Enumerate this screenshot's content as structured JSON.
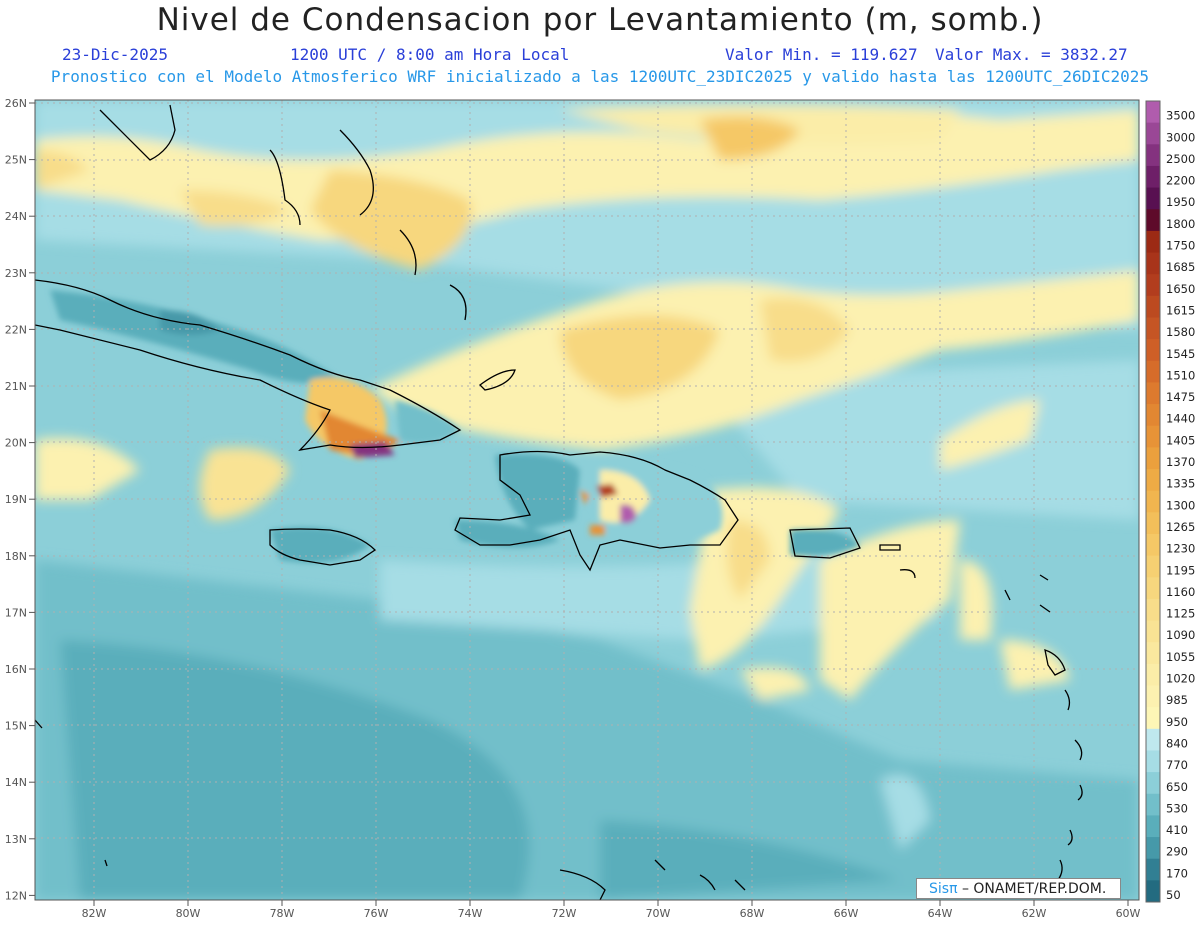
{
  "header": {
    "title": "Nivel de Condensacion por Levantamiento (m, somb.)",
    "date": "23-Dic-2025",
    "time": "1200 UTC / 8:00 am Hora Local",
    "valmin": "Valor Min. = 119.627",
    "valmax": "Valor Max. = 3832.27",
    "forecast": "Pronostico con el Modelo Atmosferico WRF inicializado a las 1200UTC_23DIC2025 y valido hasta las  1200UTC_26DIC2025"
  },
  "axes": {
    "lat_labels": [
      "26N",
      "25N",
      "24N",
      "23N",
      "22N",
      "21N",
      "20N",
      "19N",
      "18N",
      "17N",
      "16N",
      "15N",
      "14N",
      "13N",
      "12N"
    ],
    "lon_labels": [
      "82W",
      "80W",
      "78W",
      "76W",
      "74W",
      "72W",
      "70W",
      "68W",
      "66W",
      "64W",
      "62W",
      "60W"
    ]
  },
  "colorbar": {
    "labels": [
      "3500",
      "3000",
      "2500",
      "2200",
      "1950",
      "1800",
      "1750",
      "1685",
      "1650",
      "1615",
      "1580",
      "1545",
      "1510",
      "1475",
      "1440",
      "1405",
      "1370",
      "1335",
      "1300",
      "1265",
      "1230",
      "1195",
      "1160",
      "1125",
      "1090",
      "1055",
      "1020",
      "985",
      "950",
      "840",
      "770",
      "650",
      "530",
      "410",
      "290",
      "170",
      "50"
    ],
    "colors": [
      "#b05cad",
      "#9a4796",
      "#84327f",
      "#6e1f68",
      "#581051",
      "#5e0a2a",
      "#9c2a14",
      "#a8341a",
      "#b23d1e",
      "#bc4a20",
      "#c55524",
      "#ce5f27",
      "#d66c2a",
      "#dd7a2e",
      "#e28732",
      "#e79337",
      "#eba03d",
      "#eeab45",
      "#f1b54f",
      "#f3bf5a",
      "#f5c866",
      "#f6d072",
      "#f7d77e",
      "#f8dd8a",
      "#f9e394",
      "#fae89e",
      "#fbeda8",
      "#fcf1b0",
      "#fdf6b6",
      "#bfe8ee",
      "#a6dde5",
      "#8ccfd8",
      "#72bfca",
      "#5aaebb",
      "#4699a9",
      "#317f93",
      "#236b80"
    ]
  },
  "legend_credit": {
    "sis": "Sisπ",
    "rest": " – ONAMET/REP.DOM."
  },
  "colors": {
    "land_outline": "#000000",
    "grid": "#b0b0b0"
  }
}
